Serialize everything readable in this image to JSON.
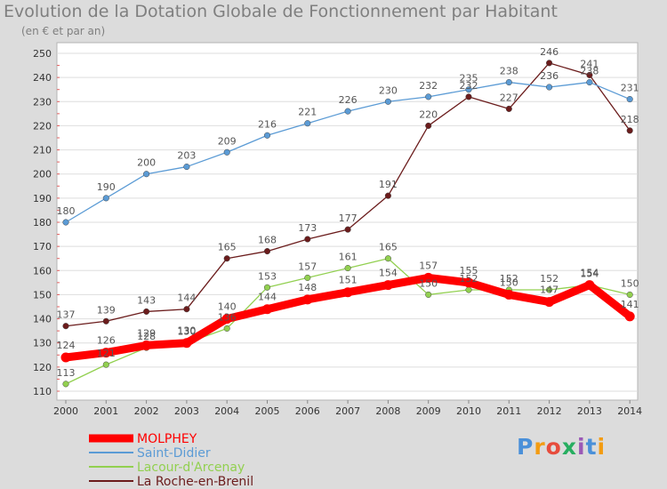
{
  "title": "Evolution de la Dotation Globale de Fonctionnement par Habitant",
  "subtitle": "(en € et par an)",
  "brand": "Proxiti",
  "colors": {
    "background": "#dcdcdc",
    "plot_background": "#ffffff",
    "grid": "#dedede"
  },
  "chart_data": {
    "type": "line",
    "title": "Evolution de la Dotation Globale de Fonctionnement par Habitant",
    "subtitle": "(en € et par an)",
    "xlabel": "",
    "ylabel": "",
    "ylim": [
      110,
      250
    ],
    "yticks": [
      110,
      120,
      130,
      140,
      150,
      160,
      170,
      180,
      190,
      200,
      210,
      220,
      230,
      240,
      250
    ],
    "grid": true,
    "legend_position": "bottom-left",
    "x": [
      "2000",
      "2001",
      "2002",
      "2003",
      "2004",
      "2005",
      "2006",
      "2007",
      "2008",
      "2009",
      "2010",
      "2011",
      "2012",
      "2013",
      "2014"
    ],
    "series": [
      {
        "name": "MOLPHEY",
        "color": "#ff0000",
        "values": [
          124,
          126,
          129,
          130,
          140,
          144,
          148,
          151,
          154,
          157,
          155,
          150,
          147,
          154,
          141
        ],
        "labels": [
          "124",
          "126",
          "129",
          "130",
          "140",
          "144",
          "148",
          "151",
          "154",
          "157",
          "155",
          "150",
          "147",
          "154",
          "141"
        ]
      },
      {
        "name": "Saint-Didier",
        "color": "#5b9bd5",
        "values": [
          180,
          190,
          200,
          203,
          209,
          216,
          221,
          226,
          230,
          232,
          235,
          238,
          236,
          238,
          231
        ],
        "labels": [
          "180",
          "190",
          "200",
          "203",
          "209",
          "216",
          "221",
          "226",
          "230",
          "232",
          "235",
          "238",
          "236",
          "238",
          "231"
        ]
      },
      {
        "name": "Lacour-d'Arcenay",
        "color": "#92d050",
        "values": [
          113,
          121,
          128,
          130,
          136,
          153,
          157,
          161,
          165,
          150,
          152,
          152,
          152,
          154,
          150
        ],
        "labels": [
          "113",
          "121",
          "128",
          "130",
          "136",
          "153",
          "157",
          "161",
          "165",
          "150",
          "152",
          "152",
          "152",
          "154",
          "150"
        ]
      },
      {
        "name": "La Roche-en-Brenil",
        "color": "#6b1c1c",
        "values": [
          137,
          139,
          143,
          144,
          165,
          168,
          173,
          177,
          191,
          220,
          232,
          227,
          246,
          241,
          218
        ],
        "labels": [
          "137",
          "139",
          "143",
          "144",
          "165",
          "168",
          "173",
          "177",
          "191",
          "220",
          "232",
          "227",
          "246",
          "241",
          "218"
        ]
      }
    ]
  }
}
